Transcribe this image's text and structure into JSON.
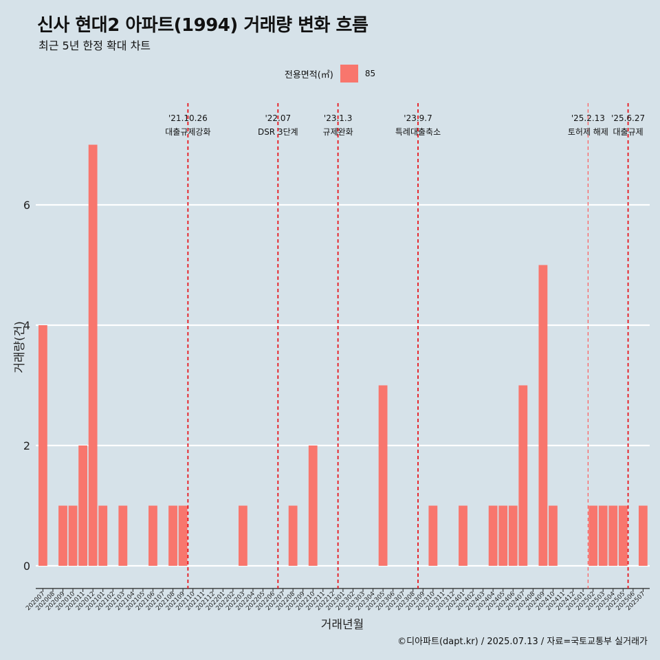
{
  "title": "신사 현대2 아파트(1994) 거래량 변화 흐름",
  "subtitle": "최근 5년 한정 확대 차트",
  "legend": {
    "title": "전용면적(㎡)",
    "items": [
      {
        "label": "85",
        "color": "#f8766d"
      }
    ]
  },
  "caption": "©디아파트(dapt.kr) / 2025.07.13 / 자료=국토교통부 실거래가",
  "chart_data": {
    "type": "bar",
    "xlabel": "거래년월",
    "ylabel": "거래량(건)",
    "ylim": [
      0,
      7
    ],
    "yticks": [
      0,
      2,
      4,
      6
    ],
    "grid": "horizontal",
    "bar_color": "#f8766d",
    "categories": [
      "202007",
      "202008",
      "202009",
      "202010",
      "202011",
      "202012",
      "202101",
      "202102",
      "202103",
      "202104",
      "202105",
      "202106",
      "202107",
      "202108",
      "202109",
      "202110",
      "202111",
      "202112",
      "202201",
      "202202",
      "202203",
      "202204",
      "202205",
      "202206",
      "202207",
      "202208",
      "202209",
      "202210",
      "202211",
      "202212",
      "202301",
      "202302",
      "202303",
      "202304",
      "202305",
      "202306",
      "202307",
      "202308",
      "202309",
      "202310",
      "202311",
      "202312",
      "202401",
      "202402",
      "202403",
      "202404",
      "202405",
      "202406",
      "202407",
      "202408",
      "202409",
      "202410",
      "202411",
      "202412",
      "202501",
      "202502",
      "202503",
      "202504",
      "202505",
      "202506",
      "202507"
    ],
    "series": [
      {
        "name": "85",
        "values": [
          4,
          0,
          1,
          1,
          2,
          7,
          1,
          0,
          1,
          0,
          0,
          1,
          0,
          1,
          1,
          0,
          0,
          0,
          0,
          0,
          1,
          0,
          0,
          0,
          0,
          1,
          0,
          2,
          0,
          0,
          0,
          0,
          0,
          0,
          3,
          0,
          0,
          0,
          0,
          1,
          0,
          0,
          1,
          0,
          0,
          1,
          1,
          1,
          3,
          0,
          5,
          1,
          0,
          0,
          0,
          1,
          1,
          1,
          1,
          0,
          1
        ]
      }
    ],
    "annotations": [
      {
        "x": "202110",
        "date": "'21.10.26",
        "text": "대출규제강화",
        "style": "dashed"
      },
      {
        "x": "202207",
        "date": "'22.07",
        "text": "DSR 3단계",
        "style": "dashed"
      },
      {
        "x": "202301",
        "date": "'23.1.3",
        "text": "규제완화",
        "style": "dashed"
      },
      {
        "x": "202309",
        "date": "'23.9.7",
        "text": "특례대출축소",
        "style": "dashed"
      },
      {
        "x": "202502",
        "date": "'25.2.13",
        "text": "토허제 해제",
        "style": "dashed-thin"
      },
      {
        "x": "202506",
        "date": "'25.6.27",
        "text": "대출규제",
        "style": "dashed"
      }
    ]
  }
}
